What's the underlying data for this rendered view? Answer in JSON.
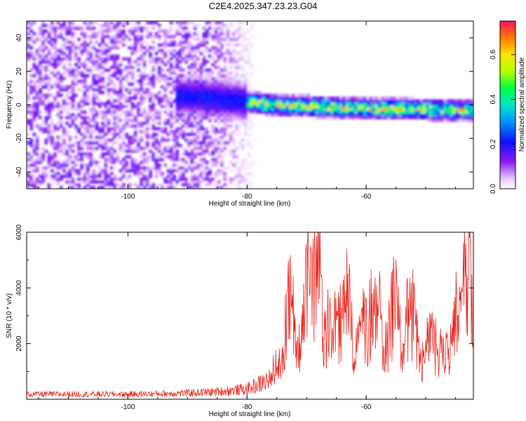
{
  "title": "C2E4.2025.347.23.23.G04",
  "chart_data": [
    {
      "type": "heatmap",
      "description": "Spectrogram of frequency vs height",
      "xlabel": "Height of straight line (km)",
      "ylabel": "Frequency (Hz)",
      "xlim": [
        -117,
        -42
      ],
      "ylim": [
        -50,
        50
      ],
      "xticks": [
        -100,
        -80,
        -60
      ],
      "yticks": [
        40,
        20,
        0,
        -20,
        -40
      ],
      "colorbar": {
        "label": "Normalized spectral amplitude",
        "range": [
          0.0,
          0.75
        ],
        "ticks": [
          "0.0",
          "0.2",
          "0.4",
          "0.6"
        ],
        "tick_values": [
          0.0,
          0.2,
          0.4,
          0.6
        ]
      },
      "features": {
        "noise_region_x": [
          -117,
          -78
        ],
        "signal_band_center_hz": [
          [
            -88,
            5
          ],
          [
            -75,
            0
          ],
          [
            -60,
            -2
          ],
          [
            -42,
            -3
          ]
        ],
        "signal_band_halfwidth_hz": 3,
        "signal_peak_amplitude": 0.7,
        "noise_amplitude": 0.1
      }
    },
    {
      "type": "line",
      "xlabel": "Height of straight line (km)",
      "ylabel": "SNR (10 * v/v)",
      "xlim": [
        -117,
        -42
      ],
      "ylim": [
        0,
        6000
      ],
      "xticks": [
        -100,
        -80,
        -60
      ],
      "yticks": [
        2000,
        4000,
        6000
      ],
      "color": "#e8241c",
      "series": [
        {
          "x": [
            -117,
            -110,
            -100,
            -95,
            -90,
            -85,
            -80,
            -78,
            -76,
            -75,
            -74,
            -73,
            -72,
            -71,
            -70,
            -69,
            -68,
            -67,
            -66,
            -65,
            -64,
            -63,
            -62,
            -61,
            -60,
            -59,
            -58,
            -57,
            -56,
            -55,
            -54,
            -53,
            -52,
            -51,
            -50,
            -49,
            -48,
            -47,
            -46,
            -45,
            -44,
            -43,
            -42
          ],
          "y": [
            200,
            200,
            200,
            220,
            250,
            300,
            400,
            600,
            800,
            2000,
            1500,
            5000,
            3000,
            1800,
            5500,
            4500,
            6000,
            2500,
            4000,
            3000,
            3500,
            4500,
            1500,
            3500,
            2800,
            3800,
            4200,
            1800,
            3200,
            5000,
            2200,
            3500,
            3600,
            1500,
            2000,
            3200,
            1800,
            2400,
            2200,
            3500,
            4000,
            6000,
            3000
          ]
        }
      ]
    }
  ]
}
